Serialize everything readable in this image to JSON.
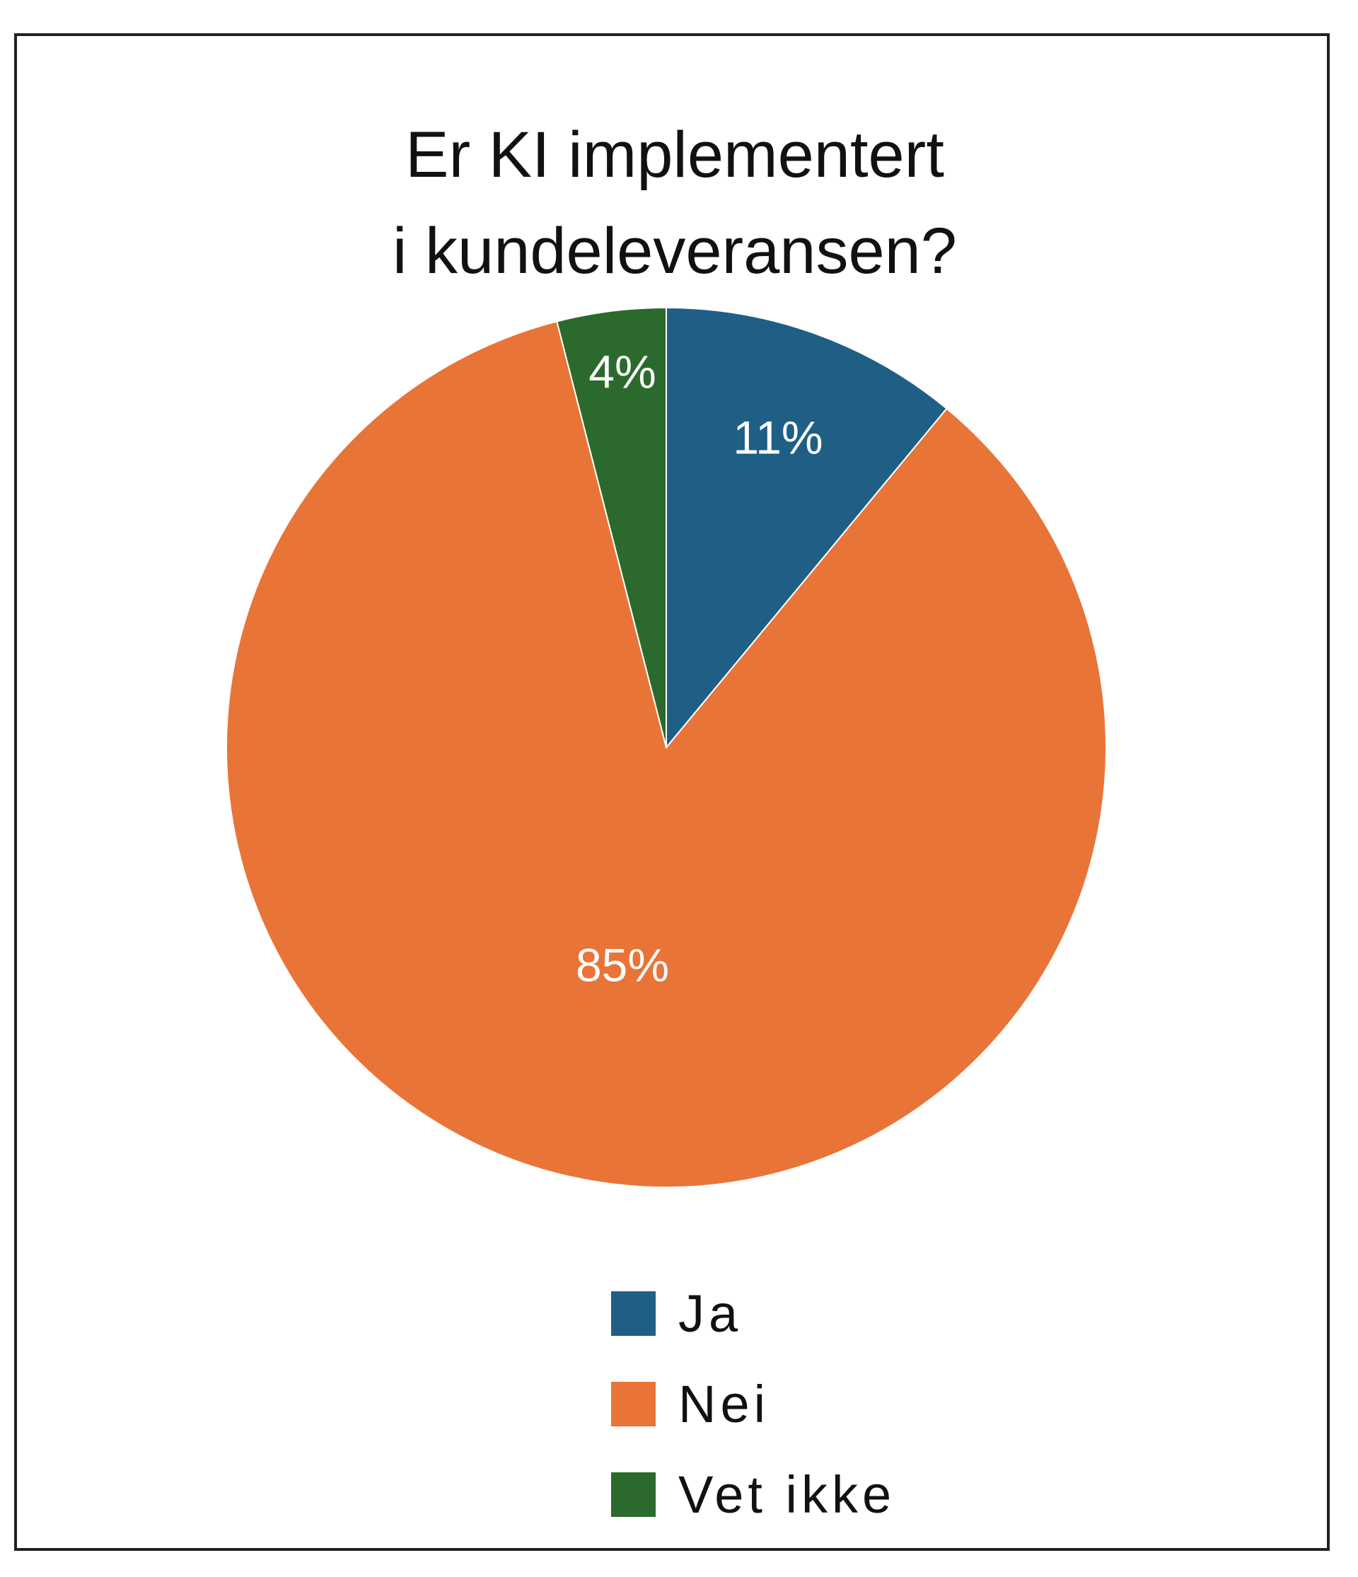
{
  "chart_data": {
    "type": "pie",
    "title_lines": [
      "Er KI implementert",
      "i kundeleveransen?"
    ],
    "slices": [
      {
        "label": "Ja",
        "value": 11,
        "display": "11%",
        "color": "#1f5f85"
      },
      {
        "label": "Nei",
        "value": 85,
        "display": "85%",
        "color": "#e97437"
      },
      {
        "label": "Vet ikke",
        "value": 4,
        "display": "4%",
        "color": "#2b6a2c"
      }
    ],
    "legend_position": "bottom",
    "start_angle": "12 o'clock",
    "direction": "clockwise"
  }
}
